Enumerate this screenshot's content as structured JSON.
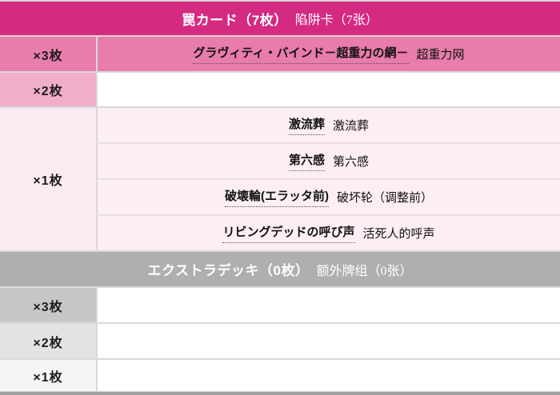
{
  "colors": {
    "trap_header_bg": "#d52a82",
    "trap_x3_bg": "#e87caa",
    "trap_x2_label_bg": "#f0aecb",
    "trap_x1_label_bg": "#fceaf2",
    "trap_x1_row_bg": "#fdeef4",
    "extra_header_bg": "#afafaf",
    "extra_x3_label_bg": "#c6c6c6",
    "extra_x2_label_bg": "#e3e3e3",
    "extra_x1_label_bg": "#f5f5f5",
    "next_section_strip": "#a0a0a0",
    "border": "#d9d9d9",
    "header_text": "#ffffff",
    "body_text": "#1a1a1a"
  },
  "trap_section": {
    "header": {
      "title_jp": "罠カード（7枚）",
      "title_cn": "陷阱卡（7张）"
    },
    "rows": [
      {
        "label": "×3枚",
        "cards": [
          {
            "jp": "グラヴィティ・バインド－超重力の網－",
            "cn": "超重力网"
          }
        ]
      },
      {
        "label": "×2枚",
        "cards": []
      },
      {
        "label": "×1枚",
        "cards": [
          {
            "jp": "激流葬",
            "cn": "激流葬"
          },
          {
            "jp": "第六感",
            "cn": "第六感"
          },
          {
            "jp": "破壊輪(エラッタ前)",
            "cn": "破坏轮（调整前）"
          },
          {
            "jp": "リビングデッドの呼び声",
            "cn": "活死人的呼声"
          }
        ]
      }
    ]
  },
  "extra_section": {
    "header": {
      "title_jp": "エクストラデッキ（0枚）",
      "title_cn": "额外牌组（0张）"
    },
    "rows": [
      {
        "label": "×3枚",
        "cards": []
      },
      {
        "label": "×2枚",
        "cards": []
      },
      {
        "label": "×1枚",
        "cards": []
      }
    ]
  }
}
